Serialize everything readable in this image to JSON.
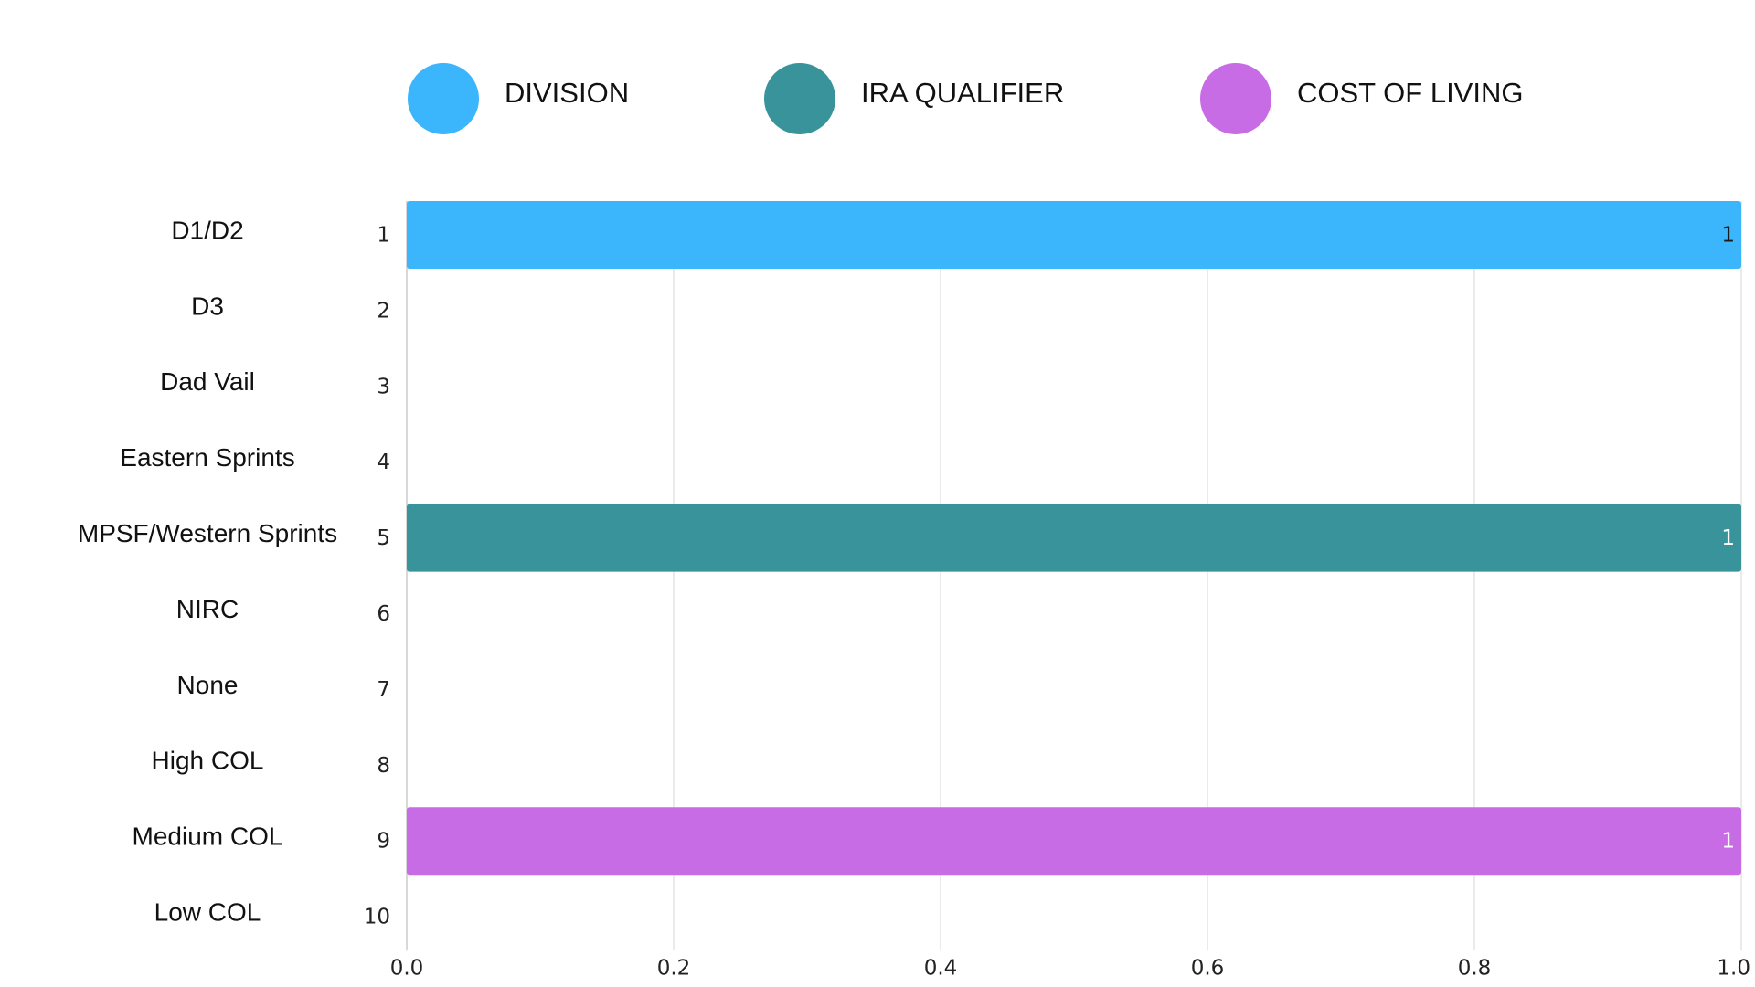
{
  "chart_data": {
    "type": "bar",
    "orientation": "horizontal",
    "categories": [
      "D1/D2",
      "D3",
      "Dad Vail",
      "Eastern Sprints",
      "MPSF/Western Sprints",
      "NIRC",
      "None",
      "High COL",
      "Medium COL",
      "Low COL"
    ],
    "row_index_labels": [
      "1",
      "2",
      "3",
      "4",
      "5",
      "6",
      "7",
      "8",
      "9",
      "10"
    ],
    "series": [
      {
        "name": "DIVISION",
        "color": "#3bb5fb",
        "label_color": "#1a1a1a",
        "values": [
          1,
          null,
          null,
          null,
          null,
          null,
          null,
          null,
          null,
          null
        ]
      },
      {
        "name": "IRA QUALIFIER",
        "color": "#38939b",
        "label_color": "#ffffff",
        "values": [
          null,
          null,
          null,
          null,
          1,
          null,
          null,
          null,
          null,
          null
        ]
      },
      {
        "name": "COST OF LIVING",
        "color": "#c86ce6",
        "label_color": "#ffffff",
        "values": [
          null,
          null,
          null,
          null,
          null,
          null,
          null,
          null,
          1,
          null
        ]
      }
    ],
    "xlim": [
      0,
      1.0
    ],
    "x_ticks": [
      "0.0",
      "0.2",
      "0.4",
      "0.6",
      "0.8",
      "1.0"
    ],
    "grid": "vertical",
    "legend": "top",
    "title": "",
    "xlabel": "",
    "ylabel": ""
  }
}
